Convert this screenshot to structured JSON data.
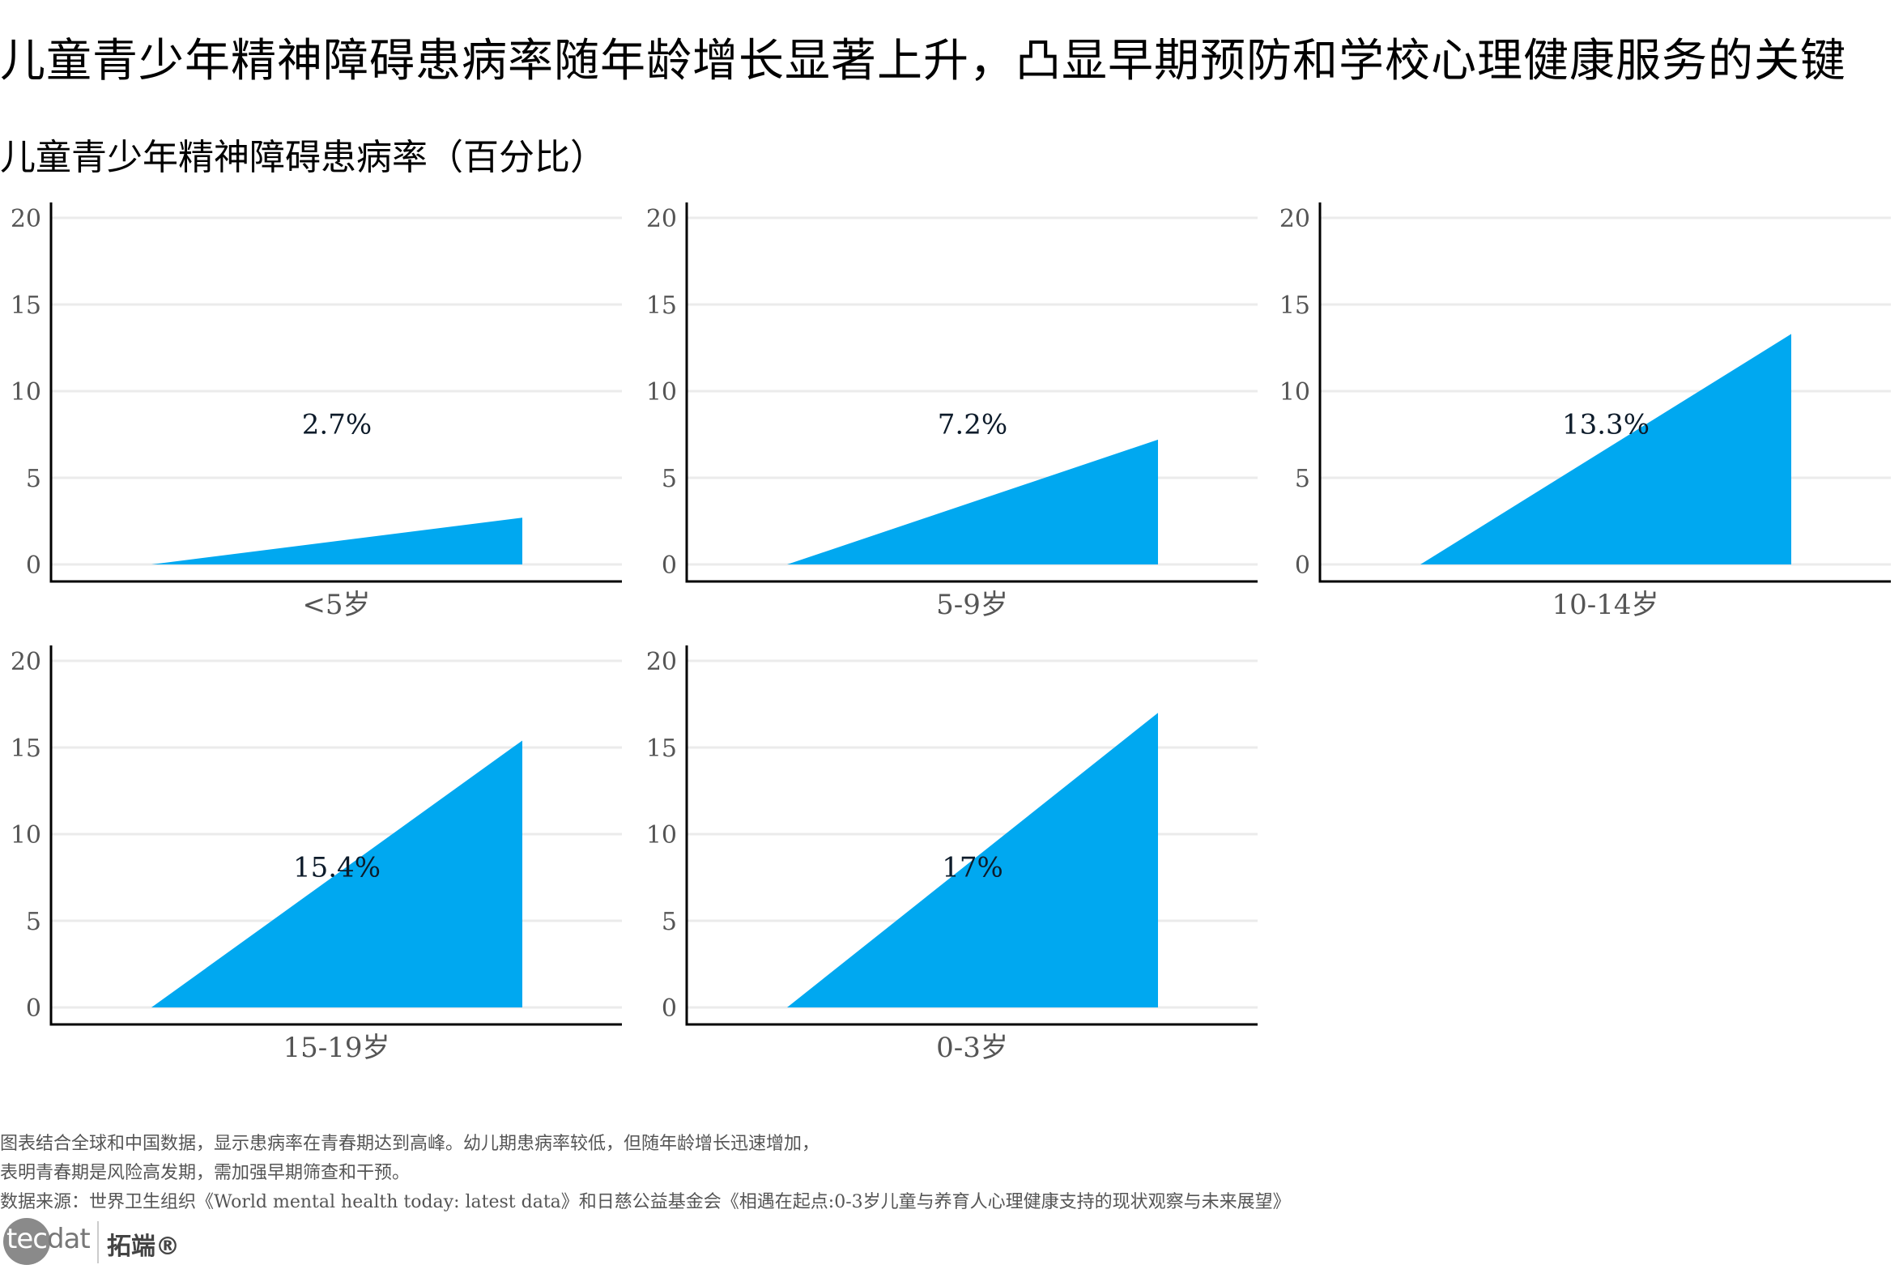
{
  "title": "儿童青少年精神障碍患病率随年龄增长显著上升，凸显早期预防和学校心理健康服务的关键",
  "subtitle": "儿童青少年精神障碍患病率（百分比）",
  "colors": {
    "fill": "#00A8F0",
    "grid": "#EBEBEB",
    "axis": "#000000",
    "tick_text": "#555555",
    "value_text": "#0D1B2A"
  },
  "chart_data": {
    "type": "area",
    "title": "儿童青少年精神障碍患病率随年龄增长显著上升，凸显早期预防和学校心理健康服务的关键",
    "subtitle": "儿童青少年精神障碍患病率（百分比）",
    "xlabel": "",
    "ylabel": "",
    "ylim": [
      0,
      20
    ],
    "yticks": [
      0,
      5,
      10,
      15,
      20
    ],
    "grid": true,
    "legend": "none",
    "layout": "facet 3 columns x 2 rows",
    "categories": [
      "<5岁",
      "5-9岁",
      "10-14岁",
      "15-19岁",
      "0-3岁"
    ],
    "values": [
      2.7,
      7.2,
      13.3,
      15.4,
      17
    ],
    "panels": [
      {
        "label": "<5岁",
        "value": 2.7,
        "value_label": "2.7%"
      },
      {
        "label": "5-9岁",
        "value": 7.2,
        "value_label": "7.2%"
      },
      {
        "label": "10-14岁",
        "value": 13.3,
        "value_label": "13.3%"
      },
      {
        "label": "15-19岁",
        "value": 15.4,
        "value_label": "15.4%"
      },
      {
        "label": "0-3岁",
        "value": 17,
        "value_label": "17%"
      }
    ]
  },
  "footer": {
    "note_line1": "图表结合全球和中国数据，显示患病率在青春期达到高峰。幼儿期患病率较低，但随年龄增长迅速增加，",
    "note_line2": "表明青春期是风险高发期，需加强早期筛查和干预。",
    "source": "数据来源：世界卫生组织《World mental health today: latest data》和日慈公益基金会《相遇在起点:0-3岁儿童与养育人心理健康支持的现状观察与未来展望》"
  },
  "logo": {
    "brand_en_part1": "tec",
    "brand_en_part2": "dat",
    "brand_cn": "拓端®"
  }
}
